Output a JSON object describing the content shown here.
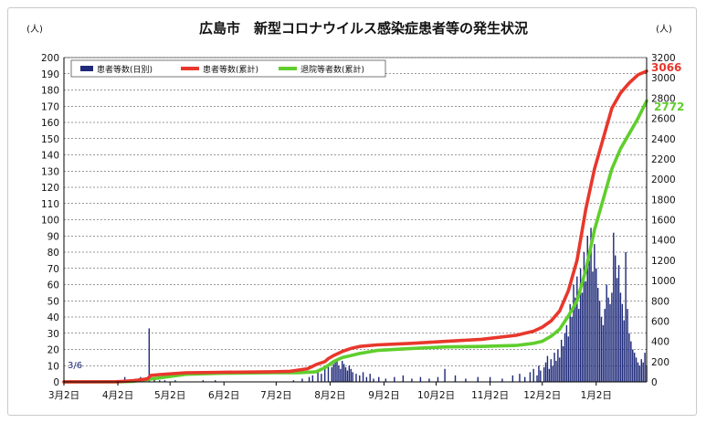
{
  "chart_data": {
    "type": "bar+line",
    "title": "広島市　新型コロナウイルス感染症患者等の発生状況",
    "y_left_unit": "(人)",
    "y_right_unit": "(人)",
    "ylim_left": [
      0,
      200
    ],
    "ylim_right": [
      0,
      3200
    ],
    "y_left_ticks": [
      "0",
      "10",
      "20",
      "30",
      "40",
      "50",
      "60",
      "70",
      "80",
      "90",
      "100",
      "110",
      "120",
      "130",
      "140",
      "150",
      "160",
      "170",
      "180",
      "190",
      "200"
    ],
    "y_right_ticks": [
      "0",
      "200",
      "400",
      "600",
      "800",
      "1000",
      "1200",
      "1400",
      "1600",
      "1800",
      "2000",
      "2200",
      "2400",
      "2600",
      "2800",
      "3000",
      "3200"
    ],
    "x_ticks": [
      "3月2日",
      "4月2日",
      "5月2日",
      "6月2日",
      "7月2日",
      "8月2日",
      "9月2日",
      "10月2日",
      "11月2日",
      "12月2日",
      "1月2日"
    ],
    "x_range_days": [
      0,
      335
    ],
    "grid": true,
    "legend_position": "top-left",
    "annotation_start": "3/6",
    "annotation_cases_total": "3066",
    "annotation_recovered_total": "2772",
    "colors": {
      "daily": "#1f2a7a",
      "cases": "#e8372c",
      "recovered": "#5fce2c"
    },
    "series": [
      {
        "name": "患者等数(日別)",
        "type": "bar",
        "axis": "left",
        "daily_points": [
          [
            4,
            1
          ],
          [
            33,
            1
          ],
          [
            35,
            3
          ],
          [
            38,
            1
          ],
          [
            41,
            2
          ],
          [
            44,
            3
          ],
          [
            46,
            2
          ],
          [
            49,
            33
          ],
          [
            52,
            2
          ],
          [
            55,
            1
          ],
          [
            58,
            1
          ],
          [
            64,
            1
          ],
          [
            80,
            1
          ],
          [
            87,
            1
          ],
          [
            132,
            1
          ],
          [
            137,
            2
          ],
          [
            141,
            3
          ],
          [
            143,
            4
          ],
          [
            146,
            6
          ],
          [
            148,
            5
          ],
          [
            150,
            8
          ],
          [
            152,
            10
          ],
          [
            154,
            9
          ],
          [
            155,
            11
          ],
          [
            156,
            12
          ],
          [
            157,
            14
          ],
          [
            158,
            10
          ],
          [
            159,
            8
          ],
          [
            160,
            13
          ],
          [
            161,
            11
          ],
          [
            162,
            9
          ],
          [
            163,
            7
          ],
          [
            164,
            10
          ],
          [
            165,
            8
          ],
          [
            166,
            6
          ],
          [
            168,
            5
          ],
          [
            170,
            4
          ],
          [
            172,
            6
          ],
          [
            174,
            3
          ],
          [
            176,
            5
          ],
          [
            178,
            2
          ],
          [
            181,
            3
          ],
          [
            185,
            2
          ],
          [
            190,
            3
          ],
          [
            195,
            4
          ],
          [
            200,
            2
          ],
          [
            205,
            3
          ],
          [
            210,
            2
          ],
          [
            215,
            3
          ],
          [
            219,
            8
          ],
          [
            225,
            4
          ],
          [
            231,
            2
          ],
          [
            238,
            3
          ],
          [
            245,
            3
          ],
          [
            252,
            2
          ],
          [
            258,
            4
          ],
          [
            262,
            5
          ],
          [
            265,
            3
          ],
          [
            268,
            6
          ],
          [
            270,
            8
          ],
          [
            272,
            4
          ],
          [
            273,
            10
          ],
          [
            274,
            7
          ],
          [
            276,
            9
          ],
          [
            277,
            12
          ],
          [
            278,
            16
          ],
          [
            279,
            8
          ],
          [
            280,
            14
          ],
          [
            281,
            10
          ],
          [
            282,
            18
          ],
          [
            283,
            13
          ],
          [
            284,
            20
          ],
          [
            285,
            15
          ],
          [
            286,
            26
          ],
          [
            287,
            22
          ],
          [
            288,
            30
          ],
          [
            289,
            35
          ],
          [
            290,
            28
          ],
          [
            291,
            48
          ],
          [
            292,
            40
          ],
          [
            293,
            60
          ],
          [
            294,
            52
          ],
          [
            295,
            65
          ],
          [
            296,
            45
          ],
          [
            297,
            70
          ],
          [
            298,
            55
          ],
          [
            299,
            80
          ],
          [
            300,
            62
          ],
          [
            301,
            90
          ],
          [
            302,
            75
          ],
          [
            303,
            95
          ],
          [
            304,
            68
          ],
          [
            305,
            85
          ],
          [
            306,
            70
          ],
          [
            307,
            58
          ],
          [
            308,
            50
          ],
          [
            309,
            40
          ],
          [
            310,
            35
          ],
          [
            311,
            45
          ],
          [
            312,
            60
          ],
          [
            313,
            52
          ],
          [
            314,
            48
          ],
          [
            315,
            55
          ],
          [
            316,
            92
          ],
          [
            317,
            78
          ],
          [
            318,
            64
          ],
          [
            319,
            72
          ],
          [
            320,
            55
          ],
          [
            321,
            48
          ],
          [
            322,
            38
          ],
          [
            323,
            80
          ],
          [
            324,
            45
          ],
          [
            325,
            30
          ],
          [
            326,
            25
          ],
          [
            327,
            20
          ],
          [
            328,
            18
          ],
          [
            329,
            15
          ],
          [
            330,
            12
          ],
          [
            331,
            10
          ],
          [
            332,
            14
          ],
          [
            333,
            12
          ],
          [
            334,
            18
          ],
          [
            335,
            10
          ]
        ]
      },
      {
        "name": "患者等数(累計)",
        "type": "line",
        "axis": "right",
        "points": [
          [
            0,
            0
          ],
          [
            4,
            1
          ],
          [
            30,
            2
          ],
          [
            35,
            6
          ],
          [
            40,
            13
          ],
          [
            46,
            25
          ],
          [
            48,
            30
          ],
          [
            50,
            64
          ],
          [
            55,
            72
          ],
          [
            70,
            90
          ],
          [
            90,
            95
          ],
          [
            120,
            100
          ],
          [
            130,
            105
          ],
          [
            140,
            130
          ],
          [
            145,
            170
          ],
          [
            150,
            200
          ],
          [
            152,
            230
          ],
          [
            155,
            260
          ],
          [
            160,
            300
          ],
          [
            165,
            330
          ],
          [
            170,
            350
          ],
          [
            180,
            365
          ],
          [
            200,
            380
          ],
          [
            220,
            400
          ],
          [
            240,
            420
          ],
          [
            260,
            460
          ],
          [
            270,
            500
          ],
          [
            275,
            540
          ],
          [
            280,
            600
          ],
          [
            285,
            700
          ],
          [
            290,
            900
          ],
          [
            295,
            1200
          ],
          [
            300,
            1700
          ],
          [
            305,
            2100
          ],
          [
            310,
            2400
          ],
          [
            315,
            2700
          ],
          [
            320,
            2850
          ],
          [
            325,
            2950
          ],
          [
            330,
            3030
          ],
          [
            335,
            3066
          ]
        ]
      },
      {
        "name": "退院等者数(累計)",
        "type": "line",
        "axis": "right",
        "points": [
          [
            0,
            0
          ],
          [
            30,
            0
          ],
          [
            40,
            5
          ],
          [
            55,
            40
          ],
          [
            70,
            75
          ],
          [
            90,
            85
          ],
          [
            120,
            90
          ],
          [
            135,
            90
          ],
          [
            145,
            100
          ],
          [
            150,
            140
          ],
          [
            155,
            200
          ],
          [
            160,
            240
          ],
          [
            170,
            280
          ],
          [
            180,
            310
          ],
          [
            200,
            330
          ],
          [
            220,
            345
          ],
          [
            240,
            350
          ],
          [
            260,
            360
          ],
          [
            270,
            380
          ],
          [
            275,
            400
          ],
          [
            280,
            450
          ],
          [
            285,
            520
          ],
          [
            290,
            650
          ],
          [
            295,
            800
          ],
          [
            300,
            1100
          ],
          [
            305,
            1500
          ],
          [
            310,
            1800
          ],
          [
            315,
            2100
          ],
          [
            320,
            2300
          ],
          [
            325,
            2450
          ],
          [
            330,
            2600
          ],
          [
            335,
            2772
          ]
        ]
      }
    ]
  }
}
